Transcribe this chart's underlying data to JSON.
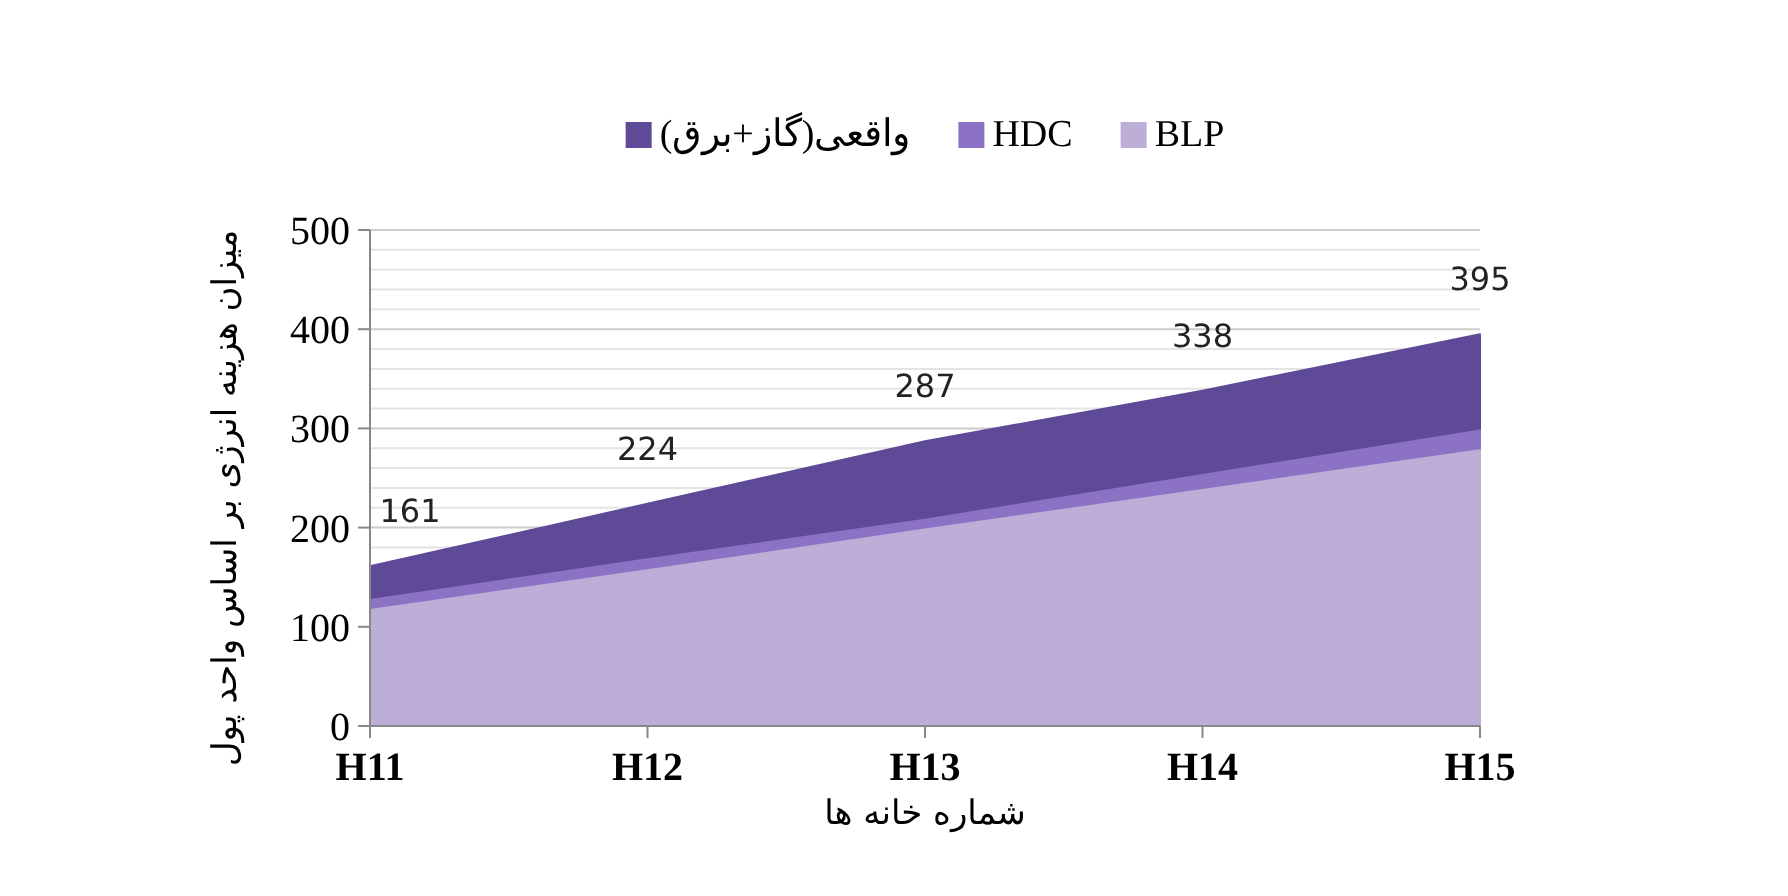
{
  "chart_data": {
    "type": "area",
    "xlabel": "شماره خانه ها",
    "ylabel": "میزان هزینه انرژی بر اساس واحد پول",
    "categories": [
      "H11",
      "H12",
      "H13",
      "H14",
      "H15"
    ],
    "series": [
      {
        "name": "واقعی(گاز+برق)",
        "color": "#5e4a96",
        "values": [
          161,
          224,
          287,
          338,
          395
        ],
        "value_labels": [
          "161",
          "224",
          "287",
          "338",
          "395"
        ]
      },
      {
        "name": "HDC",
        "color": "#8c72c4",
        "values": [
          127,
          168,
          208,
          253,
          298
        ]
      },
      {
        "name": "BLP",
        "color": "#bcaed6",
        "values": [
          117,
          157,
          198,
          238,
          278
        ]
      }
    ],
    "ylim": [
      0,
      500
    ],
    "yticks": [
      0,
      100,
      200,
      300,
      400,
      500
    ],
    "grid": "y",
    "legend": "top"
  }
}
